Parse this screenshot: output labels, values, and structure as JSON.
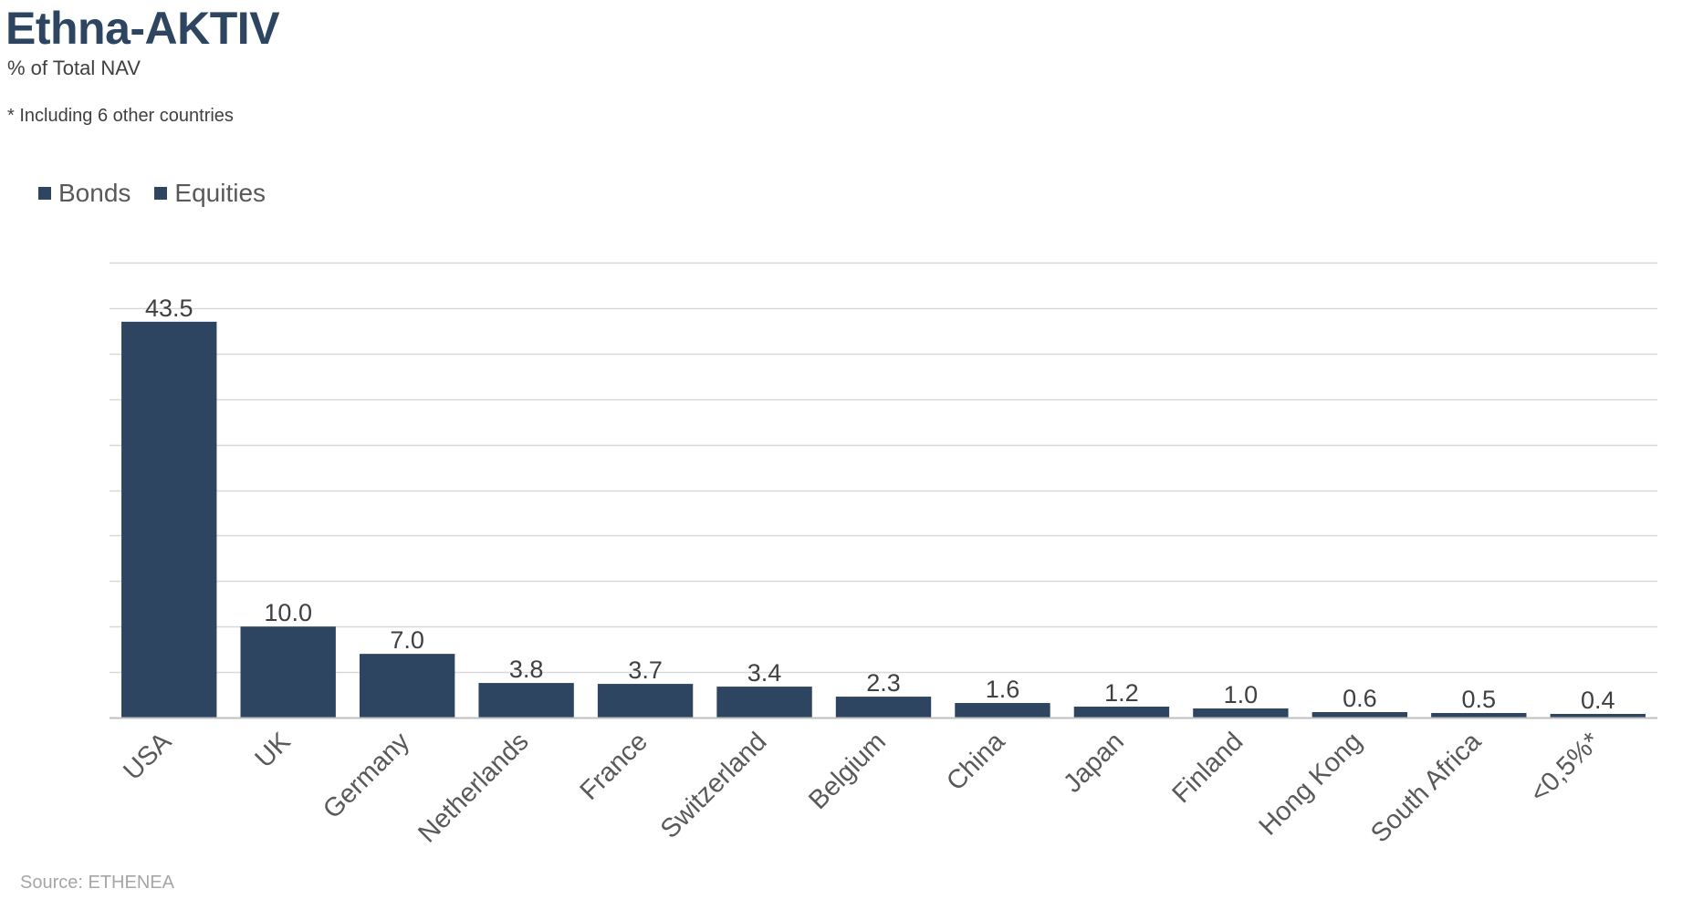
{
  "title": "Ethna-AKTIV",
  "subtitle": "% of Total NAV",
  "footnote": "* Including 6 other countries",
  "source": "Source: ETHENEA",
  "colors": {
    "bar": "#2d4560",
    "title": "#2d4560",
    "grid": "#d9d9d9",
    "axis": "#bfbfbf"
  },
  "chart_data": {
    "type": "bar",
    "title": "Ethna-AKTIV",
    "subtitle": "% of Total NAV",
    "legend": {
      "placement": "top-left",
      "entries": [
        {
          "name": "Bonds",
          "color": "#2d4560"
        },
        {
          "name": "Equities",
          "color": "#2d4560"
        }
      ]
    },
    "categories": [
      "USA",
      "UK",
      "Germany",
      "Netherlands",
      "France",
      "Switzerland",
      "Belgium",
      "China",
      "Japan",
      "Finland",
      "Hong Kong",
      "South Africa",
      "<0,5%*"
    ],
    "values": [
      43.5,
      10.0,
      7.0,
      3.8,
      3.7,
      3.4,
      2.3,
      1.6,
      1.2,
      1.0,
      0.6,
      0.5,
      0.4
    ],
    "value_labels": [
      "43.5",
      "10.0",
      "7.0",
      "3.8",
      "3.7",
      "3.4",
      "2.3",
      "1.6",
      "1.2",
      "1.0",
      "0.6",
      "0.5",
      "0.4"
    ],
    "ylim": [
      0,
      50
    ],
    "ytick_step": 5,
    "y_tick_labels_shown": false,
    "grid": true,
    "xlabel": "",
    "ylabel": ""
  }
}
